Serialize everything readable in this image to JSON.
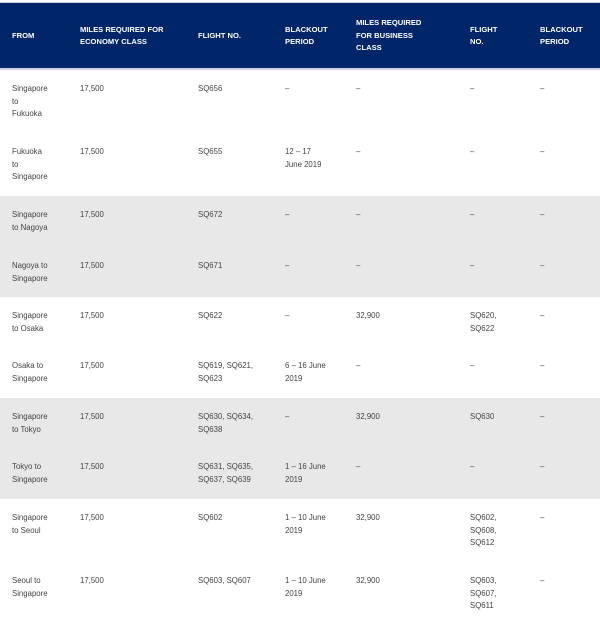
{
  "table": {
    "headers": [
      "FROM",
      "MILES REQUIRED FOR\nECONOMY CLASS",
      "FLIGHT NO.",
      "BLACKOUT\nPERIOD",
      "MILES REQUIRED\nFOR BUSINESS\nCLASS",
      "FLIGHT\nNO.",
      "BLACKOUT\nPERIOD"
    ],
    "rows": [
      [
        "Singapore\nto\nFukuoka",
        "17,500",
        "SQ656",
        "–",
        "–",
        "–",
        "–"
      ],
      [
        "Fukuoka\nto\nSingapore",
        "17,500",
        "SQ655",
        "12 – 17\nJune 2019",
        "–",
        "–",
        "–"
      ],
      [
        "Singapore\nto Nagoya",
        "17,500",
        "SQ672",
        "–",
        "–",
        "–",
        "–"
      ],
      [
        "Nagoya to\nSingapore",
        "17,500",
        "SQ671",
        "–",
        "–",
        "–",
        "–"
      ],
      [
        "Singapore\nto Osaka",
        "17,500",
        "SQ622",
        "–",
        "32,900",
        "SQ620,\nSQ622",
        "–"
      ],
      [
        "Osaka to\nSingapore",
        "17,500",
        "SQ619, SQ621,\nSQ623",
        "6 – 16 June\n2019",
        "–",
        "–",
        "–"
      ],
      [
        "Singapore\nto Tokyo",
        "17,500",
        "SQ630, SQ634,\nSQ638",
        "–",
        "32,900",
        "SQ630",
        "–"
      ],
      [
        "Tokyo to\nSingapore",
        "17,500",
        "SQ631, SQ635,\nSQ637, SQ639",
        "1 – 16 June\n2019",
        "–",
        "–",
        "–"
      ],
      [
        "Singapore\nto Seoul",
        "17,500",
        "SQ602",
        "1 – 10 June\n2019",
        "32,900",
        "SQ602,\nSQ608,\nSQ612",
        "–"
      ],
      [
        "Seoul to\nSingapore",
        "17,500",
        "SQ603, SQ607",
        "1 – 10 June\n2019",
        "32,900",
        "SQ603,\nSQ607,\nSQ611",
        "–"
      ]
    ]
  },
  "colors": {
    "header_bg": "#002569",
    "stripe": "#e8e8e8"
  }
}
